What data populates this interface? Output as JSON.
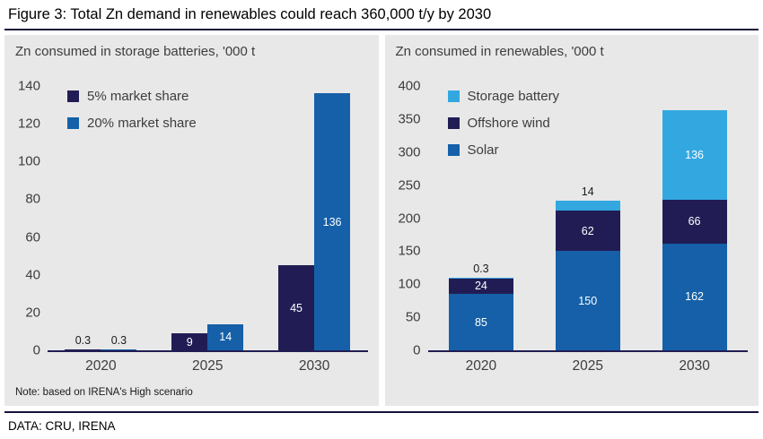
{
  "figure": {
    "title": "Figure 3: Total Zn demand in renewables could reach 360,000 t/y by 2030",
    "source": "DATA: CRU, IRENA"
  },
  "colors": {
    "navy": "#211d54",
    "blue": "#1560a8",
    "light_blue": "#33a8e0",
    "panel_bg": "#e8e8e8",
    "text_gray": "#3d3d3d",
    "rule": "#15123b"
  },
  "chart_data": [
    {
      "type": "bar",
      "stacked": false,
      "title": "Zn consumed in storage batteries, '000 t",
      "categories": [
        "2020",
        "2025",
        "2030"
      ],
      "series": [
        {
          "name": "5% market share",
          "color_key": "navy",
          "values": [
            0.3,
            9,
            45
          ]
        },
        {
          "name": "20% market share",
          "color_key": "blue",
          "values": [
            0.3,
            14,
            136
          ]
        }
      ],
      "ylim": [
        0,
        140
      ],
      "ytick_step": 20,
      "grid": false,
      "legend_position": "top-left",
      "note": "Note: based on IRENA's High scenario"
    },
    {
      "type": "bar",
      "stacked": true,
      "title": "Zn consumed in renewables, '000 t",
      "categories": [
        "2020",
        "2025",
        "2030"
      ],
      "series": [
        {
          "name": "Storage battery",
          "color_key": "light_blue",
          "values": [
            0.3,
            14,
            136
          ]
        },
        {
          "name": "Offshore wind",
          "color_key": "navy",
          "values": [
            24,
            62,
            66
          ]
        },
        {
          "name": "Solar",
          "color_key": "blue",
          "values": [
            85,
            150,
            162
          ]
        }
      ],
      "ylim": [
        0,
        400
      ],
      "ytick_step": 50,
      "grid": false,
      "legend_position": "top-left"
    }
  ]
}
